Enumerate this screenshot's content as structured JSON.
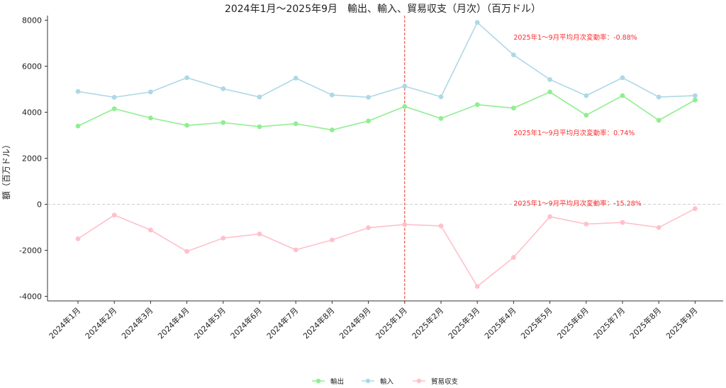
{
  "chart_data": {
    "type": "line",
    "title": "2024年1月～2025年9月　輸出、輸入、貿易収支（月次）（百万ドル）",
    "xlabel": "",
    "ylabel": "額（百万ドル）",
    "ylim": [
      -4200,
      8200
    ],
    "yticks": [
      -4000,
      -2000,
      0,
      2000,
      4000,
      6000,
      8000
    ],
    "categories": [
      "2024年1月",
      "2024年2月",
      "2024年3月",
      "2024年4月",
      "2024年5月",
      "2024年6月",
      "2024年7月",
      "2024年8月",
      "2024年9月",
      "2025年1月",
      "2025年2月",
      "2025年3月",
      "2025年4月",
      "2025年5月",
      "2025年6月",
      "2025年7月",
      "2025年8月",
      "2025年9月"
    ],
    "series": [
      {
        "name": "輸出",
        "color": "#90ee90",
        "values": [
          3400,
          4150,
          3750,
          3430,
          3550,
          3370,
          3500,
          3230,
          3620,
          4250,
          3730,
          4330,
          4180,
          4880,
          3870,
          4720,
          3650,
          4530
        ]
      },
      {
        "name": "輸入",
        "color": "#add8e6",
        "values": [
          4900,
          4650,
          4880,
          5500,
          5020,
          4660,
          5480,
          4750,
          4650,
          5130,
          4670,
          7900,
          6490,
          5420,
          4720,
          5500,
          4660,
          4720
        ]
      },
      {
        "name": "貿易収支",
        "color": "#ffc0cb",
        "values": [
          -1500,
          -470,
          -1120,
          -2050,
          -1470,
          -1290,
          -1980,
          -1550,
          -1020,
          -880,
          -940,
          -3570,
          -2310,
          -540,
          -860,
          -790,
          -1010,
          -190
        ]
      }
    ],
    "reference_lines": {
      "horizontal": 0,
      "vertical_category": "2025年1月",
      "vertical_color": "#e53935"
    },
    "annotations": [
      {
        "text": "2025年1～9月平均月次変動率：-0.88%",
        "series": "輸入"
      },
      {
        "text": "2025年1～9月平均月次変動率：0.74%",
        "series": "輸出"
      },
      {
        "text": "2025年1～9月平均月次変動率：-15.28%",
        "series": "貿易収支"
      }
    ],
    "legend": "bottom-center",
    "grid": false
  }
}
